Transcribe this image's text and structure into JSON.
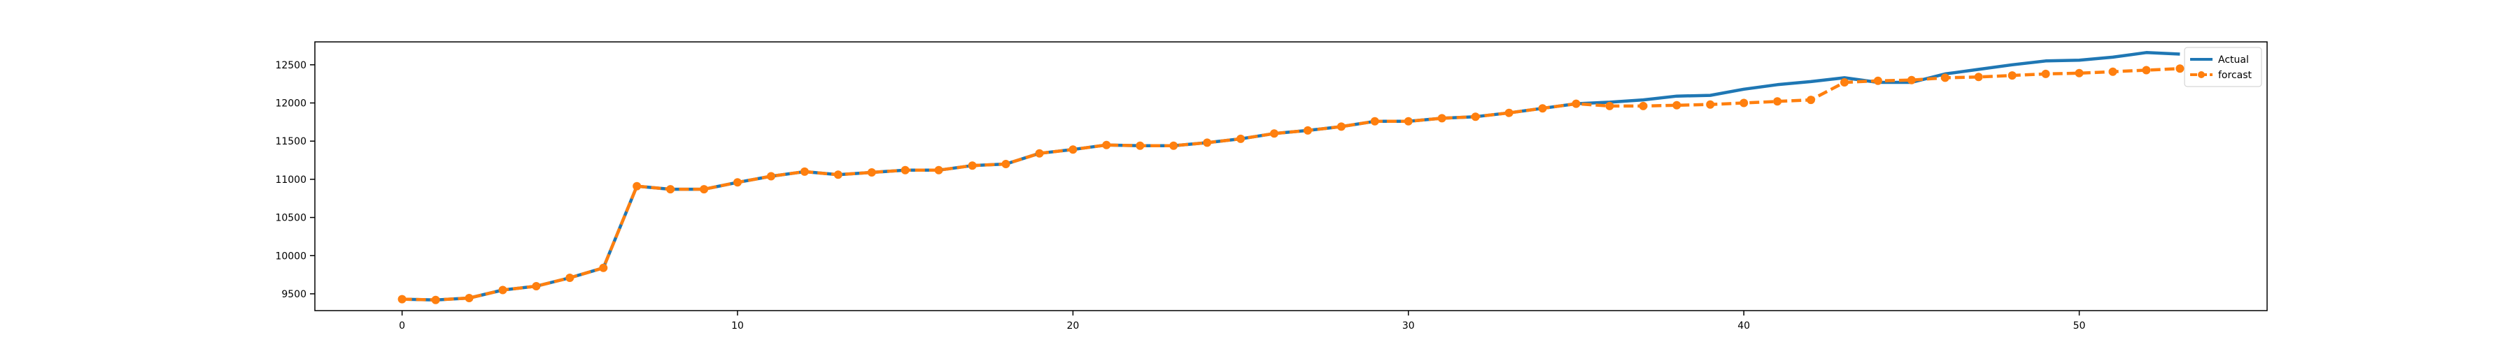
{
  "chart_data": {
    "type": "line",
    "title": "",
    "xlabel": "",
    "ylabel": "",
    "xlim": [
      -2.6,
      55.6
    ],
    "ylim": [
      9280,
      12800
    ],
    "xticks": [
      0,
      10,
      20,
      30,
      40,
      50
    ],
    "yticks": [
      9500,
      10000,
      10500,
      11000,
      11500,
      12000,
      12500
    ],
    "grid": false,
    "legend_position": "top-right",
    "series": [
      {
        "name": "Actual",
        "color": "#1f77b4",
        "style": "solid",
        "x": [
          0,
          1,
          2,
          3,
          4,
          5,
          6,
          7,
          8,
          9,
          10,
          11,
          12,
          13,
          14,
          15,
          16,
          17,
          18,
          19,
          20,
          21,
          22,
          23,
          24,
          25,
          26,
          27,
          28,
          29,
          30,
          31,
          32,
          33,
          34,
          35,
          36,
          37,
          38,
          39,
          40,
          41,
          42,
          43,
          44,
          45,
          46,
          47,
          48,
          49,
          50,
          51,
          52,
          53
        ],
        "values": [
          9430,
          9420,
          9445,
          9550,
          9600,
          9710,
          9840,
          10910,
          10870,
          10870,
          10960,
          11040,
          11100,
          11060,
          11090,
          11120,
          11120,
          11180,
          11200,
          11340,
          11390,
          11450,
          11440,
          11440,
          11480,
          11530,
          11600,
          11640,
          11690,
          11760,
          11760,
          11800,
          11820,
          11870,
          11930,
          11990,
          12010,
          12040,
          12090,
          12100,
          12180,
          12240,
          12280,
          12330,
          12270,
          12270,
          12380,
          12440,
          12500,
          12550,
          12560,
          12600,
          12660,
          12640
        ]
      },
      {
        "name": "forcast",
        "color": "#ff7f0e",
        "style": "dashed",
        "markers": true,
        "x": [
          0,
          1,
          2,
          3,
          4,
          5,
          6,
          7,
          8,
          9,
          10,
          11,
          12,
          13,
          14,
          15,
          16,
          17,
          18,
          19,
          20,
          21,
          22,
          23,
          24,
          25,
          26,
          27,
          28,
          29,
          30,
          31,
          32,
          33,
          34,
          35,
          36,
          37,
          38,
          39,
          40,
          41,
          42,
          43,
          44,
          45,
          46,
          47,
          48,
          49,
          50,
          51,
          52,
          53
        ],
        "values": [
          9430,
          9420,
          9445,
          9550,
          9600,
          9710,
          9840,
          10910,
          10870,
          10870,
          10960,
          11040,
          11100,
          11060,
          11090,
          11120,
          11120,
          11180,
          11200,
          11340,
          11390,
          11450,
          11440,
          11440,
          11480,
          11530,
          11600,
          11640,
          11690,
          11760,
          11760,
          11800,
          11820,
          11870,
          11930,
          11990,
          11960,
          11960,
          11970,
          11980,
          12000,
          12020,
          12040,
          12270,
          12290,
          12300,
          12330,
          12340,
          12360,
          12380,
          12390,
          12410,
          12430,
          12450
        ]
      }
    ]
  }
}
